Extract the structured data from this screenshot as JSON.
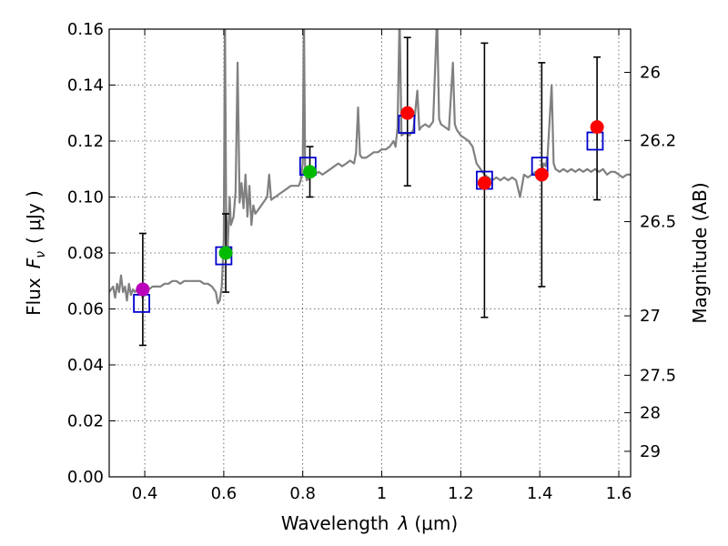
{
  "chart_data": {
    "type": "scatter",
    "xlabel_prefix": "Wavelength",
    "xlabel_symbol": "λ",
    "xlabel_unit": "(μm)",
    "ylabel_prefix": "Flux",
    "ylabel_symbol": "F",
    "ylabel_subscript": "ν",
    "ylabel_unit": "( μJy )",
    "y2label": "Magnitude (AB)",
    "xlim": [
      0.31,
      1.63
    ],
    "ylim": [
      0.0,
      0.16
    ],
    "grid": true,
    "x_ticks": [
      0.4,
      0.6,
      0.8,
      1.0,
      1.2,
      1.4,
      1.6
    ],
    "x_tick_labels": [
      "0.4",
      "0.6",
      "0.8",
      "1",
      "1.2",
      "1.4",
      "1.6"
    ],
    "y_ticks": [
      0.0,
      0.02,
      0.04,
      0.06,
      0.08,
      0.1,
      0.12,
      0.14,
      0.16
    ],
    "y_tick_labels": [
      "0.00",
      "0.02",
      "0.04",
      "0.06",
      "0.08",
      "0.10",
      "0.12",
      "0.14",
      "0.16"
    ],
    "right_ticks": [
      {
        "mag": 26,
        "label": "26"
      },
      {
        "mag": 26.2,
        "label": "26.2"
      },
      {
        "mag": 26.5,
        "label": "26.5"
      },
      {
        "mag": 27,
        "label": "27"
      },
      {
        "mag": 27.5,
        "label": "27.5"
      },
      {
        "mag": 28,
        "label": "28"
      },
      {
        "mag": 29,
        "label": "29"
      }
    ],
    "observed": [
      {
        "x": 0.395,
        "y": 0.067,
        "err_low": 0.047,
        "err_high": 0.087,
        "color": "#bb00bb"
      },
      {
        "x": 0.605,
        "y": 0.08,
        "err_low": 0.066,
        "err_high": 0.094,
        "color": "#00bb00"
      },
      {
        "x": 0.818,
        "y": 0.109,
        "err_low": 0.1,
        "err_high": 0.118,
        "color": "#00bb00"
      },
      {
        "x": 1.065,
        "y": 0.13,
        "err_low": 0.104,
        "err_high": 0.157,
        "color": "#ff0000"
      },
      {
        "x": 1.26,
        "y": 0.105,
        "err_low": 0.057,
        "err_high": 0.155,
        "color": "#ff0000"
      },
      {
        "x": 1.405,
        "y": 0.108,
        "err_low": 0.068,
        "err_high": 0.148,
        "color": "#ff0000"
      },
      {
        "x": 1.545,
        "y": 0.125,
        "err_low": 0.099,
        "err_high": 0.15,
        "color": "#ff0000"
      }
    ],
    "model_points": [
      {
        "x": 0.392,
        "y": 0.062
      },
      {
        "x": 0.6,
        "y": 0.079
      },
      {
        "x": 0.813,
        "y": 0.111
      },
      {
        "x": 1.063,
        "y": 0.126
      },
      {
        "x": 1.26,
        "y": 0.106
      },
      {
        "x": 1.4,
        "y": 0.111
      },
      {
        "x": 1.54,
        "y": 0.12
      }
    ],
    "spectrum": {
      "color": "#808080",
      "points": [
        [
          0.31,
          0.066
        ],
        [
          0.32,
          0.068
        ],
        [
          0.325,
          0.064
        ],
        [
          0.33,
          0.069
        ],
        [
          0.335,
          0.066
        ],
        [
          0.34,
          0.072
        ],
        [
          0.345,
          0.066
        ],
        [
          0.35,
          0.068
        ],
        [
          0.355,
          0.063
        ],
        [
          0.36,
          0.069
        ],
        [
          0.365,
          0.065
        ],
        [
          0.37,
          0.067
        ],
        [
          0.375,
          0.066
        ],
        [
          0.38,
          0.067
        ],
        [
          0.385,
          0.065
        ],
        [
          0.39,
          0.066
        ],
        [
          0.395,
          0.064
        ],
        [
          0.4,
          0.066
        ],
        [
          0.41,
          0.067
        ],
        [
          0.42,
          0.068
        ],
        [
          0.43,
          0.068
        ],
        [
          0.44,
          0.068
        ],
        [
          0.45,
          0.069
        ],
        [
          0.46,
          0.069
        ],
        [
          0.47,
          0.07
        ],
        [
          0.48,
          0.07
        ],
        [
          0.49,
          0.069
        ],
        [
          0.5,
          0.07
        ],
        [
          0.51,
          0.07
        ],
        [
          0.52,
          0.07
        ],
        [
          0.53,
          0.07
        ],
        [
          0.54,
          0.07
        ],
        [
          0.55,
          0.069
        ],
        [
          0.56,
          0.069
        ],
        [
          0.57,
          0.068
        ],
        [
          0.58,
          0.066
        ],
        [
          0.585,
          0.062
        ],
        [
          0.59,
          0.063
        ],
        [
          0.595,
          0.068
        ],
        [
          0.6,
          0.085
        ],
        [
          0.603,
          0.165
        ],
        [
          0.606,
          0.095
        ],
        [
          0.61,
          0.082
        ],
        [
          0.615,
          0.1
        ],
        [
          0.618,
          0.09
        ],
        [
          0.625,
          0.093
        ],
        [
          0.63,
          0.102
        ],
        [
          0.635,
          0.148
        ],
        [
          0.64,
          0.098
        ],
        [
          0.645,
          0.105
        ],
        [
          0.65,
          0.096
        ],
        [
          0.655,
          0.108
        ],
        [
          0.66,
          0.093
        ],
        [
          0.665,
          0.104
        ],
        [
          0.67,
          0.09
        ],
        [
          0.675,
          0.097
        ],
        [
          0.68,
          0.094
        ],
        [
          0.69,
          0.096
        ],
        [
          0.7,
          0.098
        ],
        [
          0.71,
          0.1
        ],
        [
          0.715,
          0.108
        ],
        [
          0.72,
          0.099
        ],
        [
          0.73,
          0.1
        ],
        [
          0.74,
          0.101
        ],
        [
          0.75,
          0.102
        ],
        [
          0.76,
          0.103
        ],
        [
          0.77,
          0.104
        ],
        [
          0.78,
          0.104
        ],
        [
          0.79,
          0.104
        ],
        [
          0.795,
          0.106
        ],
        [
          0.8,
          0.112
        ],
        [
          0.803,
          0.165
        ],
        [
          0.806,
          0.11
        ],
        [
          0.81,
          0.106
        ],
        [
          0.82,
          0.107
        ],
        [
          0.83,
          0.108
        ],
        [
          0.84,
          0.109
        ],
        [
          0.85,
          0.108
        ],
        [
          0.86,
          0.109
        ],
        [
          0.87,
          0.11
        ],
        [
          0.88,
          0.111
        ],
        [
          0.89,
          0.112
        ],
        [
          0.9,
          0.111
        ],
        [
          0.91,
          0.112
        ],
        [
          0.92,
          0.113
        ],
        [
          0.93,
          0.112
        ],
        [
          0.935,
          0.116
        ],
        [
          0.94,
          0.132
        ],
        [
          0.945,
          0.115
        ],
        [
          0.95,
          0.114
        ],
        [
          0.96,
          0.114
        ],
        [
          0.97,
          0.115
        ],
        [
          0.98,
          0.116
        ],
        [
          0.99,
          0.116
        ],
        [
          1.0,
          0.117
        ],
        [
          1.01,
          0.117
        ],
        [
          1.02,
          0.118
        ],
        [
          1.03,
          0.12
        ],
        [
          1.035,
          0.118
        ],
        [
          1.04,
          0.125
        ],
        [
          1.045,
          0.165
        ],
        [
          1.05,
          0.122
        ],
        [
          1.06,
          0.123
        ],
        [
          1.07,
          0.122
        ],
        [
          1.08,
          0.124
        ],
        [
          1.09,
          0.138
        ],
        [
          1.095,
          0.124
        ],
        [
          1.1,
          0.125
        ],
        [
          1.11,
          0.126
        ],
        [
          1.12,
          0.125
        ],
        [
          1.13,
          0.127
        ],
        [
          1.14,
          0.165
        ],
        [
          1.145,
          0.128
        ],
        [
          1.15,
          0.126
        ],
        [
          1.16,
          0.125
        ],
        [
          1.17,
          0.124
        ],
        [
          1.18,
          0.148
        ],
        [
          1.185,
          0.126
        ],
        [
          1.19,
          0.124
        ],
        [
          1.2,
          0.122
        ],
        [
          1.21,
          0.121
        ],
        [
          1.22,
          0.12
        ],
        [
          1.23,
          0.118
        ],
        [
          1.24,
          0.112
        ],
        [
          1.25,
          0.11
        ],
        [
          1.26,
          0.108
        ],
        [
          1.27,
          0.107
        ],
        [
          1.28,
          0.106
        ],
        [
          1.29,
          0.107
        ],
        [
          1.3,
          0.106
        ],
        [
          1.31,
          0.107
        ],
        [
          1.32,
          0.106
        ],
        [
          1.33,
          0.107
        ],
        [
          1.34,
          0.106
        ],
        [
          1.35,
          0.1
        ],
        [
          1.36,
          0.108
        ],
        [
          1.37,
          0.107
        ],
        [
          1.38,
          0.108
        ],
        [
          1.39,
          0.109
        ],
        [
          1.4,
          0.108
        ],
        [
          1.405,
          0.109
        ],
        [
          1.41,
          0.112
        ],
        [
          1.415,
          0.111
        ],
        [
          1.42,
          0.115
        ],
        [
          1.43,
          0.14
        ],
        [
          1.435,
          0.112
        ],
        [
          1.44,
          0.11
        ],
        [
          1.45,
          0.109
        ],
        [
          1.46,
          0.11
        ],
        [
          1.47,
          0.109
        ],
        [
          1.48,
          0.11
        ],
        [
          1.49,
          0.109
        ],
        [
          1.5,
          0.11
        ],
        [
          1.51,
          0.109
        ],
        [
          1.52,
          0.11
        ],
        [
          1.53,
          0.109
        ],
        [
          1.54,
          0.11
        ],
        [
          1.55,
          0.109
        ],
        [
          1.56,
          0.11
        ],
        [
          1.57,
          0.108
        ],
        [
          1.58,
          0.109
        ],
        [
          1.59,
          0.109
        ],
        [
          1.6,
          0.108
        ],
        [
          1.61,
          0.107
        ],
        [
          1.62,
          0.108
        ],
        [
          1.63,
          0.108
        ]
      ]
    }
  }
}
